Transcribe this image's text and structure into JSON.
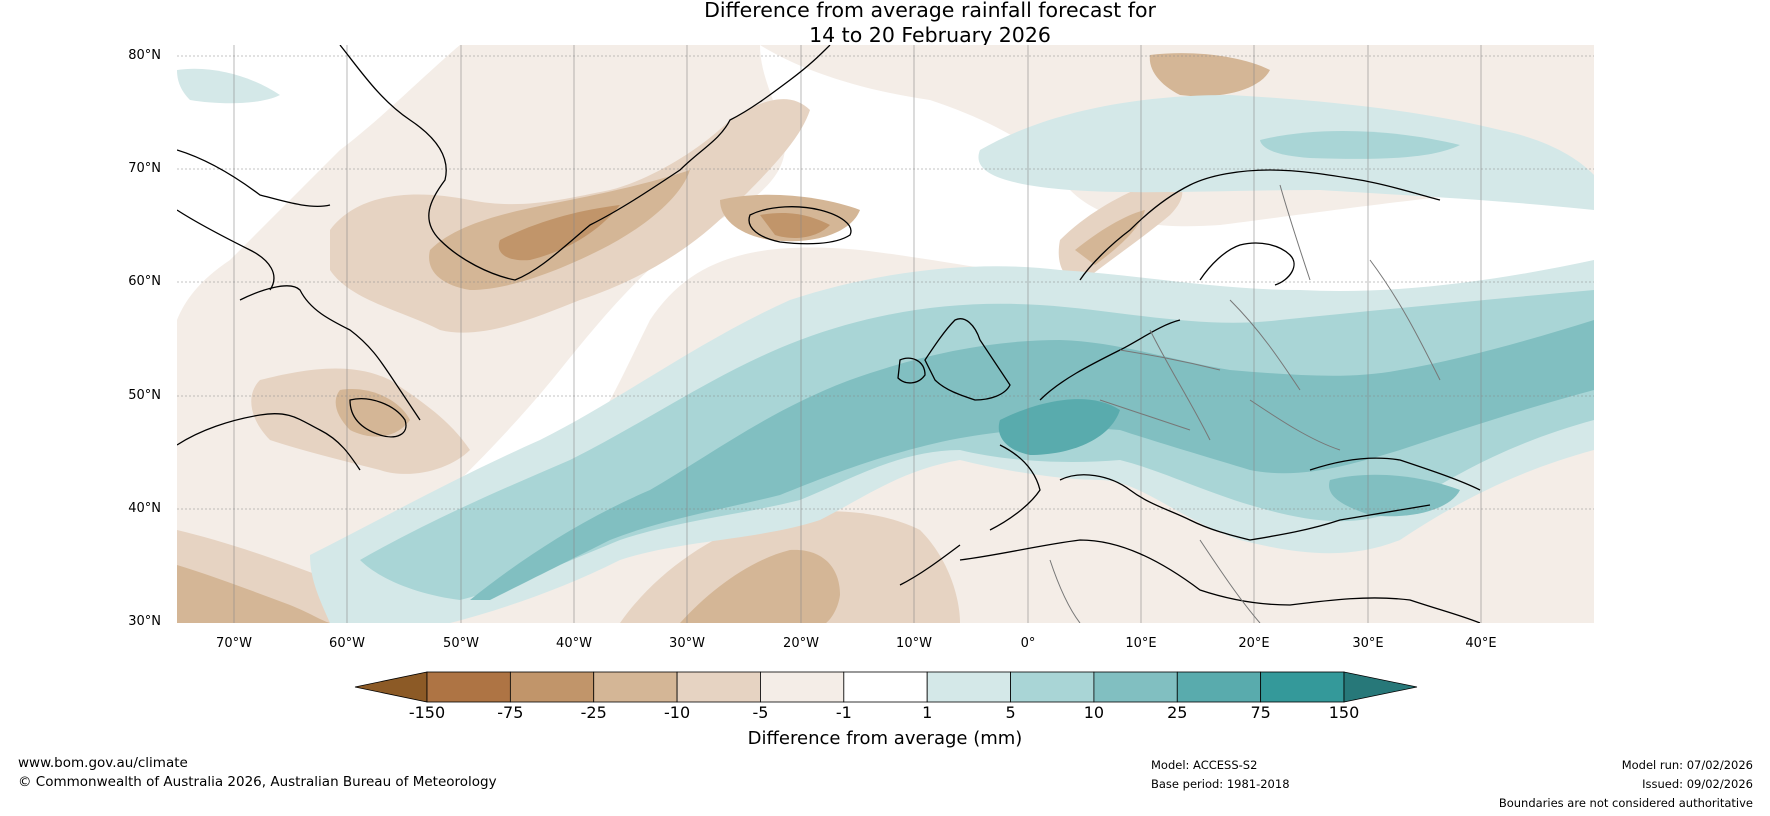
{
  "title": {
    "line1": "Difference from average rainfall forecast for",
    "line2": "14 to 20 February 2026"
  },
  "map": {
    "lat_labels": [
      "80°N",
      "70°N",
      "60°N",
      "50°N",
      "40°N",
      "30°N"
    ],
    "lon_labels": [
      "70°W",
      "60°W",
      "50°W",
      "40°W",
      "30°W",
      "20°W",
      "10°W",
      "0°",
      "10°E",
      "20°E",
      "30°E",
      "40°E"
    ],
    "lon_range": [
      -75,
      50
    ],
    "lat_range": [
      30,
      81
    ]
  },
  "legend": {
    "title": "Difference from average (mm)",
    "tick_labels": [
      "-150",
      "-75",
      "-25",
      "-10",
      "-5",
      "-1",
      "1",
      "5",
      "10",
      "25",
      "75",
      "150"
    ],
    "colors": [
      "#8c5a26",
      "#ae7444",
      "#c1956a",
      "#d4b696",
      "#e6d3c2",
      "#f4ede7",
      "#ffffff",
      "#d4e8e8",
      "#a9d5d6",
      "#81bfc1",
      "#59abad",
      "#34999a",
      "#277879"
    ]
  },
  "footer": {
    "website": "www.bom.gov.au/climate",
    "copyright": "© Commonwealth of Australia 2026, Australian Bureau of Meteorology",
    "model": "Model: ACCESS-S2",
    "base_period": "Base period: 1981-2018",
    "model_run": "Model run: 07/02/2026",
    "issued": "Issued: 09/02/2026",
    "disclaimer": "Boundaries are not considered authoritative"
  }
}
